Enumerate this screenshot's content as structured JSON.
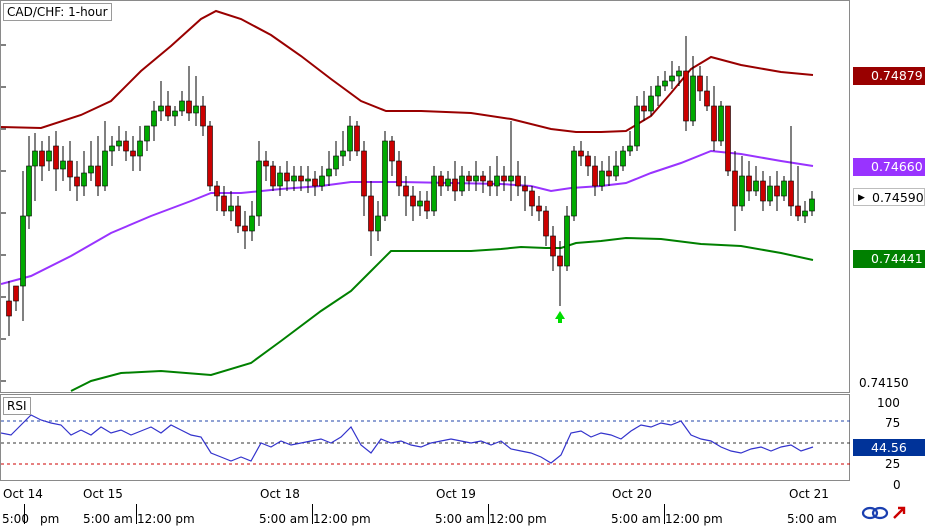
{
  "main": {
    "title": "CAD/CHF: 1-hour",
    "price_ticks": [
      "0.74150"
    ],
    "tags": {
      "upper_band": {
        "value": "0.74879",
        "color": "#990000"
      },
      "middle_band": {
        "value": "0.74660",
        "color": "#9933ff"
      },
      "current": {
        "value": "0.74590"
      },
      "lower_band": {
        "value": "0.74441",
        "color": "#008000"
      }
    },
    "colors": {
      "bull": "#00aa00",
      "bear": "#cc0000",
      "upper": "#990000",
      "middle": "#9933ff",
      "lower": "#008000",
      "signal_arrow": "#00dd00"
    }
  },
  "rsi": {
    "title": "RSI",
    "ticks": [
      "100",
      "75",
      "25",
      "0"
    ],
    "value": "44.56",
    "line_color": "#3333cc"
  },
  "time_axis": {
    "dates": [
      "Oct 14",
      "Oct 15",
      "Oct 18",
      "Oct 19",
      "Oct 20",
      "Oct 21"
    ],
    "times": [
      "5:00",
      "pm",
      "5:00 am",
      "12:00 pm",
      "5:00 am",
      "12:00 pm",
      "5:00 am",
      "12:00 pm",
      "5:00 am",
      "12:00 pm",
      "5:00 am"
    ]
  },
  "icons": [
    "link-icon",
    "arrow-icon"
  ]
}
